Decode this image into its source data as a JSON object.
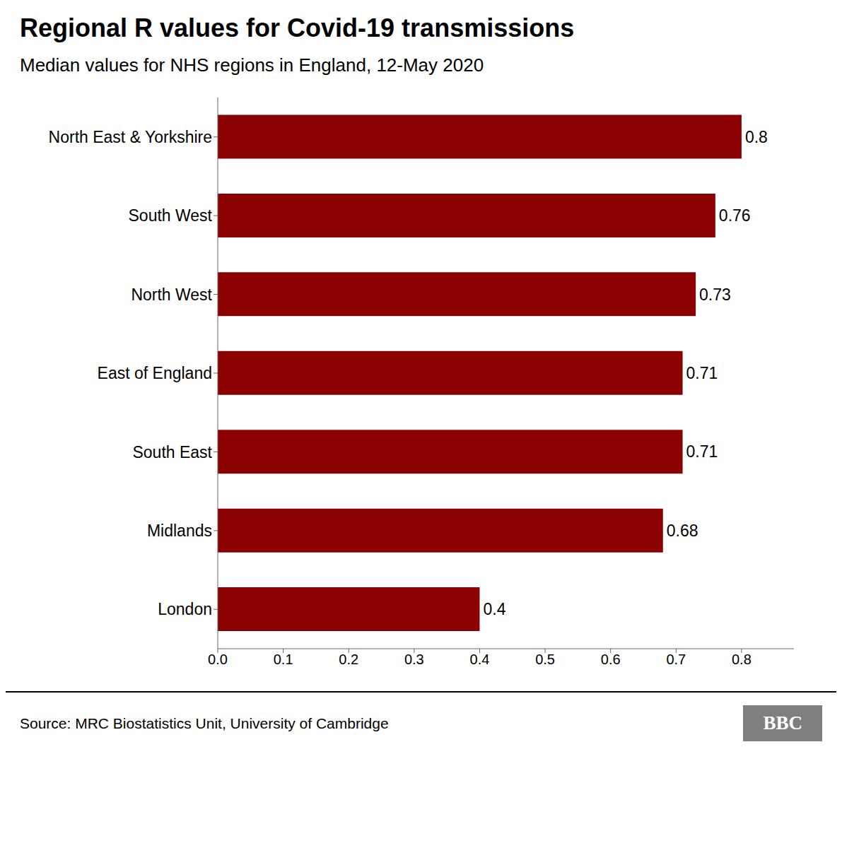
{
  "chart_data": {
    "type": "bar",
    "orientation": "horizontal",
    "title": "Regional R values for Covid-19 transmissions",
    "subtitle": "Median values for NHS regions in England, 12-May 2020",
    "categories": [
      "London",
      "Midlands",
      "South East",
      "East of England",
      "North West",
      "South West",
      "North East & Yorkshire"
    ],
    "values": [
      0.4,
      0.68,
      0.71,
      0.71,
      0.73,
      0.76,
      0.8
    ],
    "color": "#8B0000",
    "data_labels": true,
    "xlim": [
      0,
      0.88
    ],
    "xticks": [
      {
        "value": 0,
        "label": "0.0"
      },
      0.1,
      0.2,
      0.3,
      0.4,
      0.5,
      0.6,
      0.7,
      0.8
    ],
    "grid": false,
    "annotations": [
      "Source: MRC Biostatistics Unit, University of Cambridge",
      "BBC"
    ]
  }
}
